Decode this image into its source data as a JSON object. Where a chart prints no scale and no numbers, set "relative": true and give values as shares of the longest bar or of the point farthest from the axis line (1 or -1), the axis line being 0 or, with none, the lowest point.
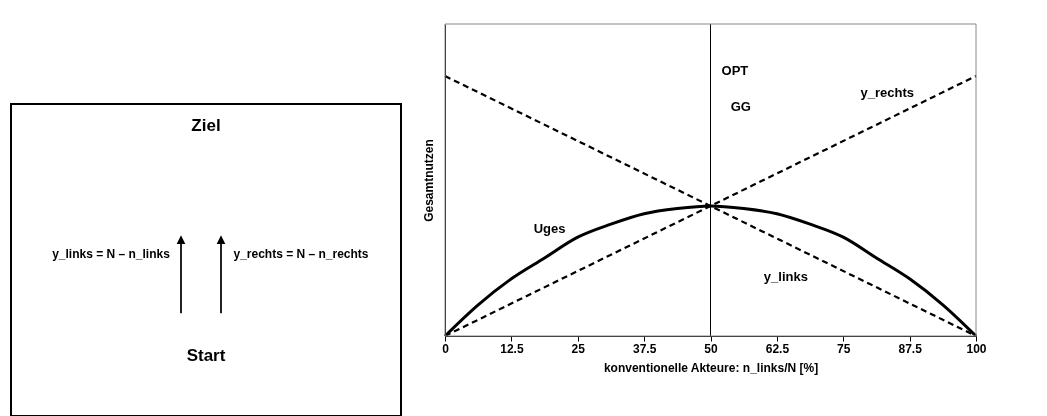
{
  "chart_data": [
    {
      "type": "other",
      "annotations": [
        "Ziel",
        "y_links = N – n_links",
        "y_rechts = N – n_rechts",
        "Start"
      ]
    },
    {
      "type": "line",
      "relative": true,
      "xlabel": "konventionelle Akteure: n_links/N [%]",
      "ylabel": "Gesamtnutzen",
      "xlim": [
        0,
        100
      ],
      "xticks": [
        0,
        12.5,
        25,
        37.5,
        50,
        62.5,
        75,
        87.5,
        100
      ],
      "grid": false,
      "legend": false,
      "series": [
        {
          "name": "Uges",
          "color": "#000000",
          "line_style": "solid",
          "x": [
            0,
            6.25,
            12.5,
            18.75,
            25,
            31.25,
            37.5,
            43.75,
            50,
            56.25,
            62.5,
            68.75,
            75,
            81.25,
            87.5,
            93.75,
            100
          ],
          "values": [
            0,
            0.12,
            0.22,
            0.3,
            0.38,
            0.43,
            0.47,
            0.49,
            0.5,
            0.49,
            0.47,
            0.43,
            0.38,
            0.3,
            0.22,
            0.12,
            0
          ]
        },
        {
          "name": "y_links",
          "color": "#000000",
          "line_style": "dashed",
          "x": [
            0,
            100
          ],
          "values": [
            1,
            0
          ]
        },
        {
          "name": "y_rechts",
          "color": "#000000",
          "line_style": "dashed",
          "x": [
            0,
            100
          ],
          "values": [
            0,
            1
          ]
        }
      ],
      "ref_lines": [
        {
          "axis": "x",
          "value": 50,
          "color": "#000000"
        }
      ],
      "annotations": [
        "OPT",
        "GG"
      ]
    }
  ]
}
